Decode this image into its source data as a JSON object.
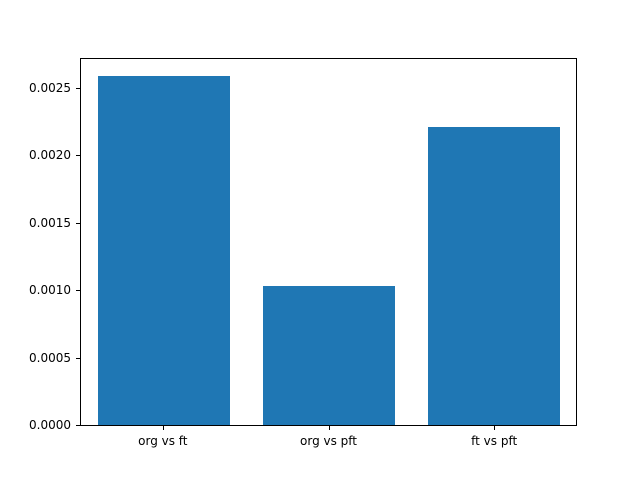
{
  "chart_data": {
    "type": "bar",
    "title": "",
    "xlabel": "",
    "ylabel": "",
    "categories": [
      "org vs ft",
      "org vs pft",
      "ft vs pft"
    ],
    "values": [
      0.0026,
      0.00104,
      0.00222
    ],
    "ylim": [
      0,
      0.00273
    ],
    "yticks": [
      0,
      0.0005,
      0.001,
      0.0015,
      0.002,
      0.0025
    ],
    "ytick_labels": [
      "0.0000",
      "0.0005",
      "0.0010",
      "0.0015",
      "0.0020",
      "0.0025"
    ],
    "bar_color": "#1f77b4",
    "bar_width_fraction": 0.8,
    "grid": false,
    "legend_position": "none",
    "frame_color": "#000000",
    "background_color": "#ffffff"
  }
}
